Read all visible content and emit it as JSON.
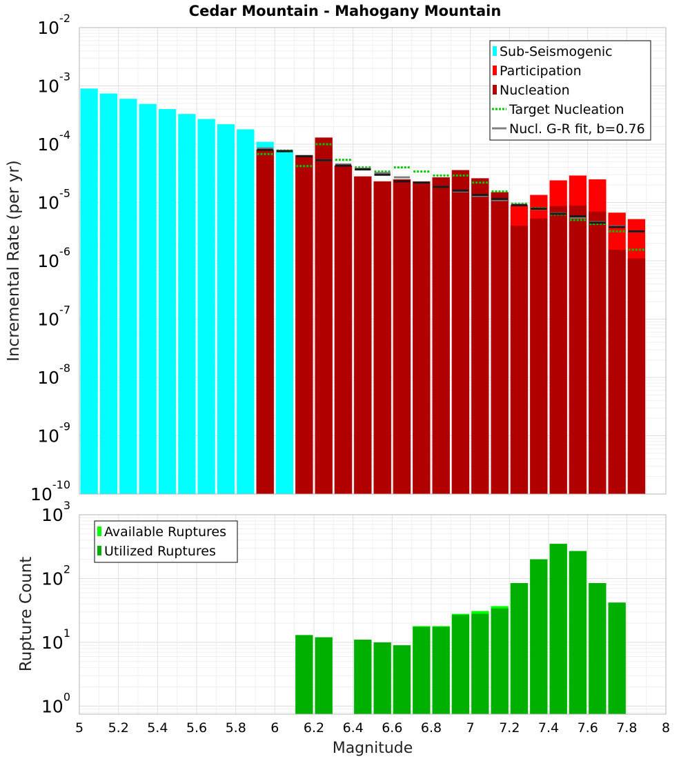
{
  "chart_data": {
    "type": "bar",
    "title": "Cedar Mountain - Mahogany Mountain",
    "xlabel": "Magnitude",
    "xlim": [
      5,
      8
    ],
    "x_ticks": [
      "5",
      "5.2",
      "5.4",
      "5.6",
      "5.8",
      "6",
      "6.2",
      "6.4",
      "6.6",
      "6.8",
      "7",
      "7.2",
      "7.4",
      "7.6",
      "7.8",
      "8"
    ],
    "bin_width": 0.1,
    "panels": [
      {
        "id": "rates",
        "ylabel": "Incremental Rate (per yr)",
        "yscale": "log",
        "ylim": [
          1e-10,
          0.01
        ],
        "y_ticks": [
          {
            "base": "10",
            "exp": "-2"
          },
          {
            "base": "10",
            "exp": "-3"
          },
          {
            "base": "10",
            "exp": "-4"
          },
          {
            "base": "10",
            "exp": "-5"
          },
          {
            "base": "10",
            "exp": "-6"
          },
          {
            "base": "10",
            "exp": "-7"
          },
          {
            "base": "10",
            "exp": "-8"
          },
          {
            "base": "10",
            "exp": "-9"
          },
          {
            "base": "10",
            "exp": "-10"
          }
        ],
        "legend": {
          "position": "top-right",
          "entries": [
            {
              "label": "Sub-Seismogenic",
              "kind": "bar",
              "color": "#00ffff"
            },
            {
              "label": "Participation",
              "kind": "bar",
              "color": "#ff0000"
            },
            {
              "label": "Nucleation",
              "kind": "bar",
              "color": "#b00000"
            },
            {
              "label": "Target Nucleation",
              "kind": "dotted",
              "color": "#00c800"
            },
            {
              "label": "Nucl. G-R fit, b=0.76",
              "kind": "line",
              "color": "#808080"
            }
          ]
        },
        "series": [
          {
            "name": "Sub-Seismogenic",
            "style": "bar",
            "color": "#00ffff",
            "x": [
              5.05,
              5.15,
              5.25,
              5.35,
              5.45,
              5.55,
              5.65,
              5.75,
              5.85,
              5.95,
              6.05
            ],
            "values": [
              0.0009,
              0.00074,
              0.0006,
              0.00049,
              0.0004,
              0.00033,
              0.00027,
              0.00022,
              0.00018,
              0.00011,
              8e-05
            ]
          },
          {
            "name": "Participation",
            "style": "bar",
            "color": "#ff0000",
            "x": [
              5.95,
              6.15,
              6.25,
              6.35,
              6.45,
              6.55,
              6.65,
              6.75,
              6.85,
              6.95,
              7.05,
              7.15,
              7.25,
              7.35,
              7.45,
              7.55,
              7.65,
              7.75,
              7.85
            ],
            "values": [
              8e-05,
              6.5e-05,
              0.00013,
              4.3e-05,
              2.8e-05,
              2.3e-05,
              2.5e-05,
              2.3e-05,
              2.7e-05,
              3.6e-05,
              2.6e-05,
              1.5e-05,
              9e-06,
              1.35e-05,
              2.4e-05,
              2.9e-05,
              2.5e-05,
              6.7e-06,
              5.2e-06
            ]
          },
          {
            "name": "Nucleation",
            "style": "bar",
            "color": "#b00000",
            "x": [
              5.95,
              6.15,
              6.25,
              6.35,
              6.45,
              6.55,
              6.65,
              6.75,
              6.85,
              6.95,
              7.05,
              7.15,
              7.25,
              7.35,
              7.45,
              7.55,
              7.65,
              7.75,
              7.85
            ],
            "values": [
              8e-05,
              6.5e-05,
              0.00013,
              4.3e-05,
              2.8e-05,
              2.3e-05,
              2.5e-05,
              2.3e-05,
              2.7e-05,
              3.6e-05,
              2.6e-05,
              1.5e-05,
              4e-06,
              5.3e-06,
              8.7e-06,
              8.9e-06,
              7e-06,
              1.55e-06,
              1.1e-06
            ]
          },
          {
            "name": "Target Nucleation",
            "style": "dotted-segment",
            "color": "#00c800",
            "x": [
              5.95,
              6.05,
              6.15,
              6.25,
              6.35,
              6.45,
              6.55,
              6.65,
              6.75,
              6.85,
              6.95,
              7.05,
              7.15,
              7.25,
              7.35,
              7.45,
              7.55,
              7.65,
              7.75,
              7.85
            ],
            "values": [
              6.8e-05,
              7.8e-05,
              4.2e-05,
              0.0001,
              5.4e-05,
              4e-05,
              3.4e-05,
              4e-05,
              3.4e-05,
              2.9e-05,
              2.9e-05,
              2.2e-05,
              1.55e-05,
              9.5e-06,
              8e-06,
              6.2e-06,
              5e-06,
              4.3e-06,
              3.2e-06,
              1.55e-06
            ]
          },
          {
            "name": "Nucl. G-R fit, b=0.76",
            "style": "segment",
            "color": "#808080",
            "x": [
              5.95,
              6.05,
              6.15,
              6.25,
              6.35,
              6.45,
              6.55,
              6.65,
              6.75,
              6.85,
              6.95,
              7.05,
              7.15,
              7.25,
              7.35,
              7.45,
              7.55,
              7.65,
              7.75,
              7.85
            ],
            "values": [
              8.5e-05,
              7.7e-05,
              6.3e-05,
              5.3e-05,
              4.5e-05,
              3.8e-05,
              3.2e-05,
              2.7e-05,
              2.2e-05,
              1.85e-05,
              1.55e-05,
              1.3e-05,
              1.1e-05,
              9.2e-06,
              7.7e-06,
              6.5e-06,
              5.5e-06,
              4.6e-06,
              3.9e-06,
              3.2e-06
            ]
          },
          {
            "name": "Nucleation (fit marks)",
            "style": "segment",
            "color": "#1a1a1a",
            "x": [
              5.95,
              6.05,
              6.15,
              6.25,
              6.35,
              6.45,
              6.55,
              6.65,
              6.75,
              6.85,
              6.95,
              7.05,
              7.15,
              7.25,
              7.35,
              7.45,
              7.55,
              7.65,
              7.75,
              7.85
            ],
            "values": [
              8e-05,
              7.6e-05,
              6.2e-05,
              5.3e-05,
              4.3e-05,
              3.7e-05,
              3e-05,
              2.3e-05,
              2.2e-05,
              1.85e-05,
              1.6e-05,
              1.35e-05,
              1.15e-05,
              9e-06,
              7.8e-06,
              6.4e-06,
              5.8e-06,
              4.5e-06,
              3.8e-06,
              3.2e-06
            ]
          }
        ]
      },
      {
        "id": "counts",
        "ylabel": "Rupture Count",
        "yscale": "log",
        "ylim": [
          0.75,
          1000
        ],
        "y_ticks": [
          {
            "base": "10",
            "exp": "3"
          },
          {
            "base": "10",
            "exp": "2"
          },
          {
            "base": "10",
            "exp": "1"
          },
          {
            "base": "10",
            "exp": "0"
          }
        ],
        "legend": {
          "position": "top-left",
          "entries": [
            {
              "label": "Available Ruptures",
              "kind": "bar",
              "color": "#00ff00"
            },
            {
              "label": "Utilized Ruptures",
              "kind": "bar",
              "color": "#00b000"
            }
          ]
        },
        "series": [
          {
            "name": "Available Ruptures",
            "style": "bar",
            "color": "#00ff00",
            "x": [
              6.15,
              6.25,
              6.45,
              6.55,
              6.65,
              6.75,
              6.85,
              6.95,
              7.05,
              7.15,
              7.25,
              7.35,
              7.45,
              7.55,
              7.65,
              7.75
            ],
            "values": [
              13,
              12,
              11,
              10,
              9,
              18,
              18,
              28,
              31,
              37,
              85,
              200,
              350,
              270,
              85,
              42
            ]
          },
          {
            "name": "Utilized Ruptures",
            "style": "bar",
            "color": "#00b000",
            "x": [
              6.15,
              6.25,
              6.45,
              6.55,
              6.65,
              6.75,
              6.85,
              6.95,
              7.05,
              7.15,
              7.25,
              7.35,
              7.45,
              7.55,
              7.65,
              7.75
            ],
            "values": [
              13,
              12,
              11,
              10,
              9,
              17.5,
              17.5,
              27,
              28,
              34,
              85,
              200,
              350,
              270,
              85,
              42
            ]
          }
        ]
      }
    ]
  }
}
